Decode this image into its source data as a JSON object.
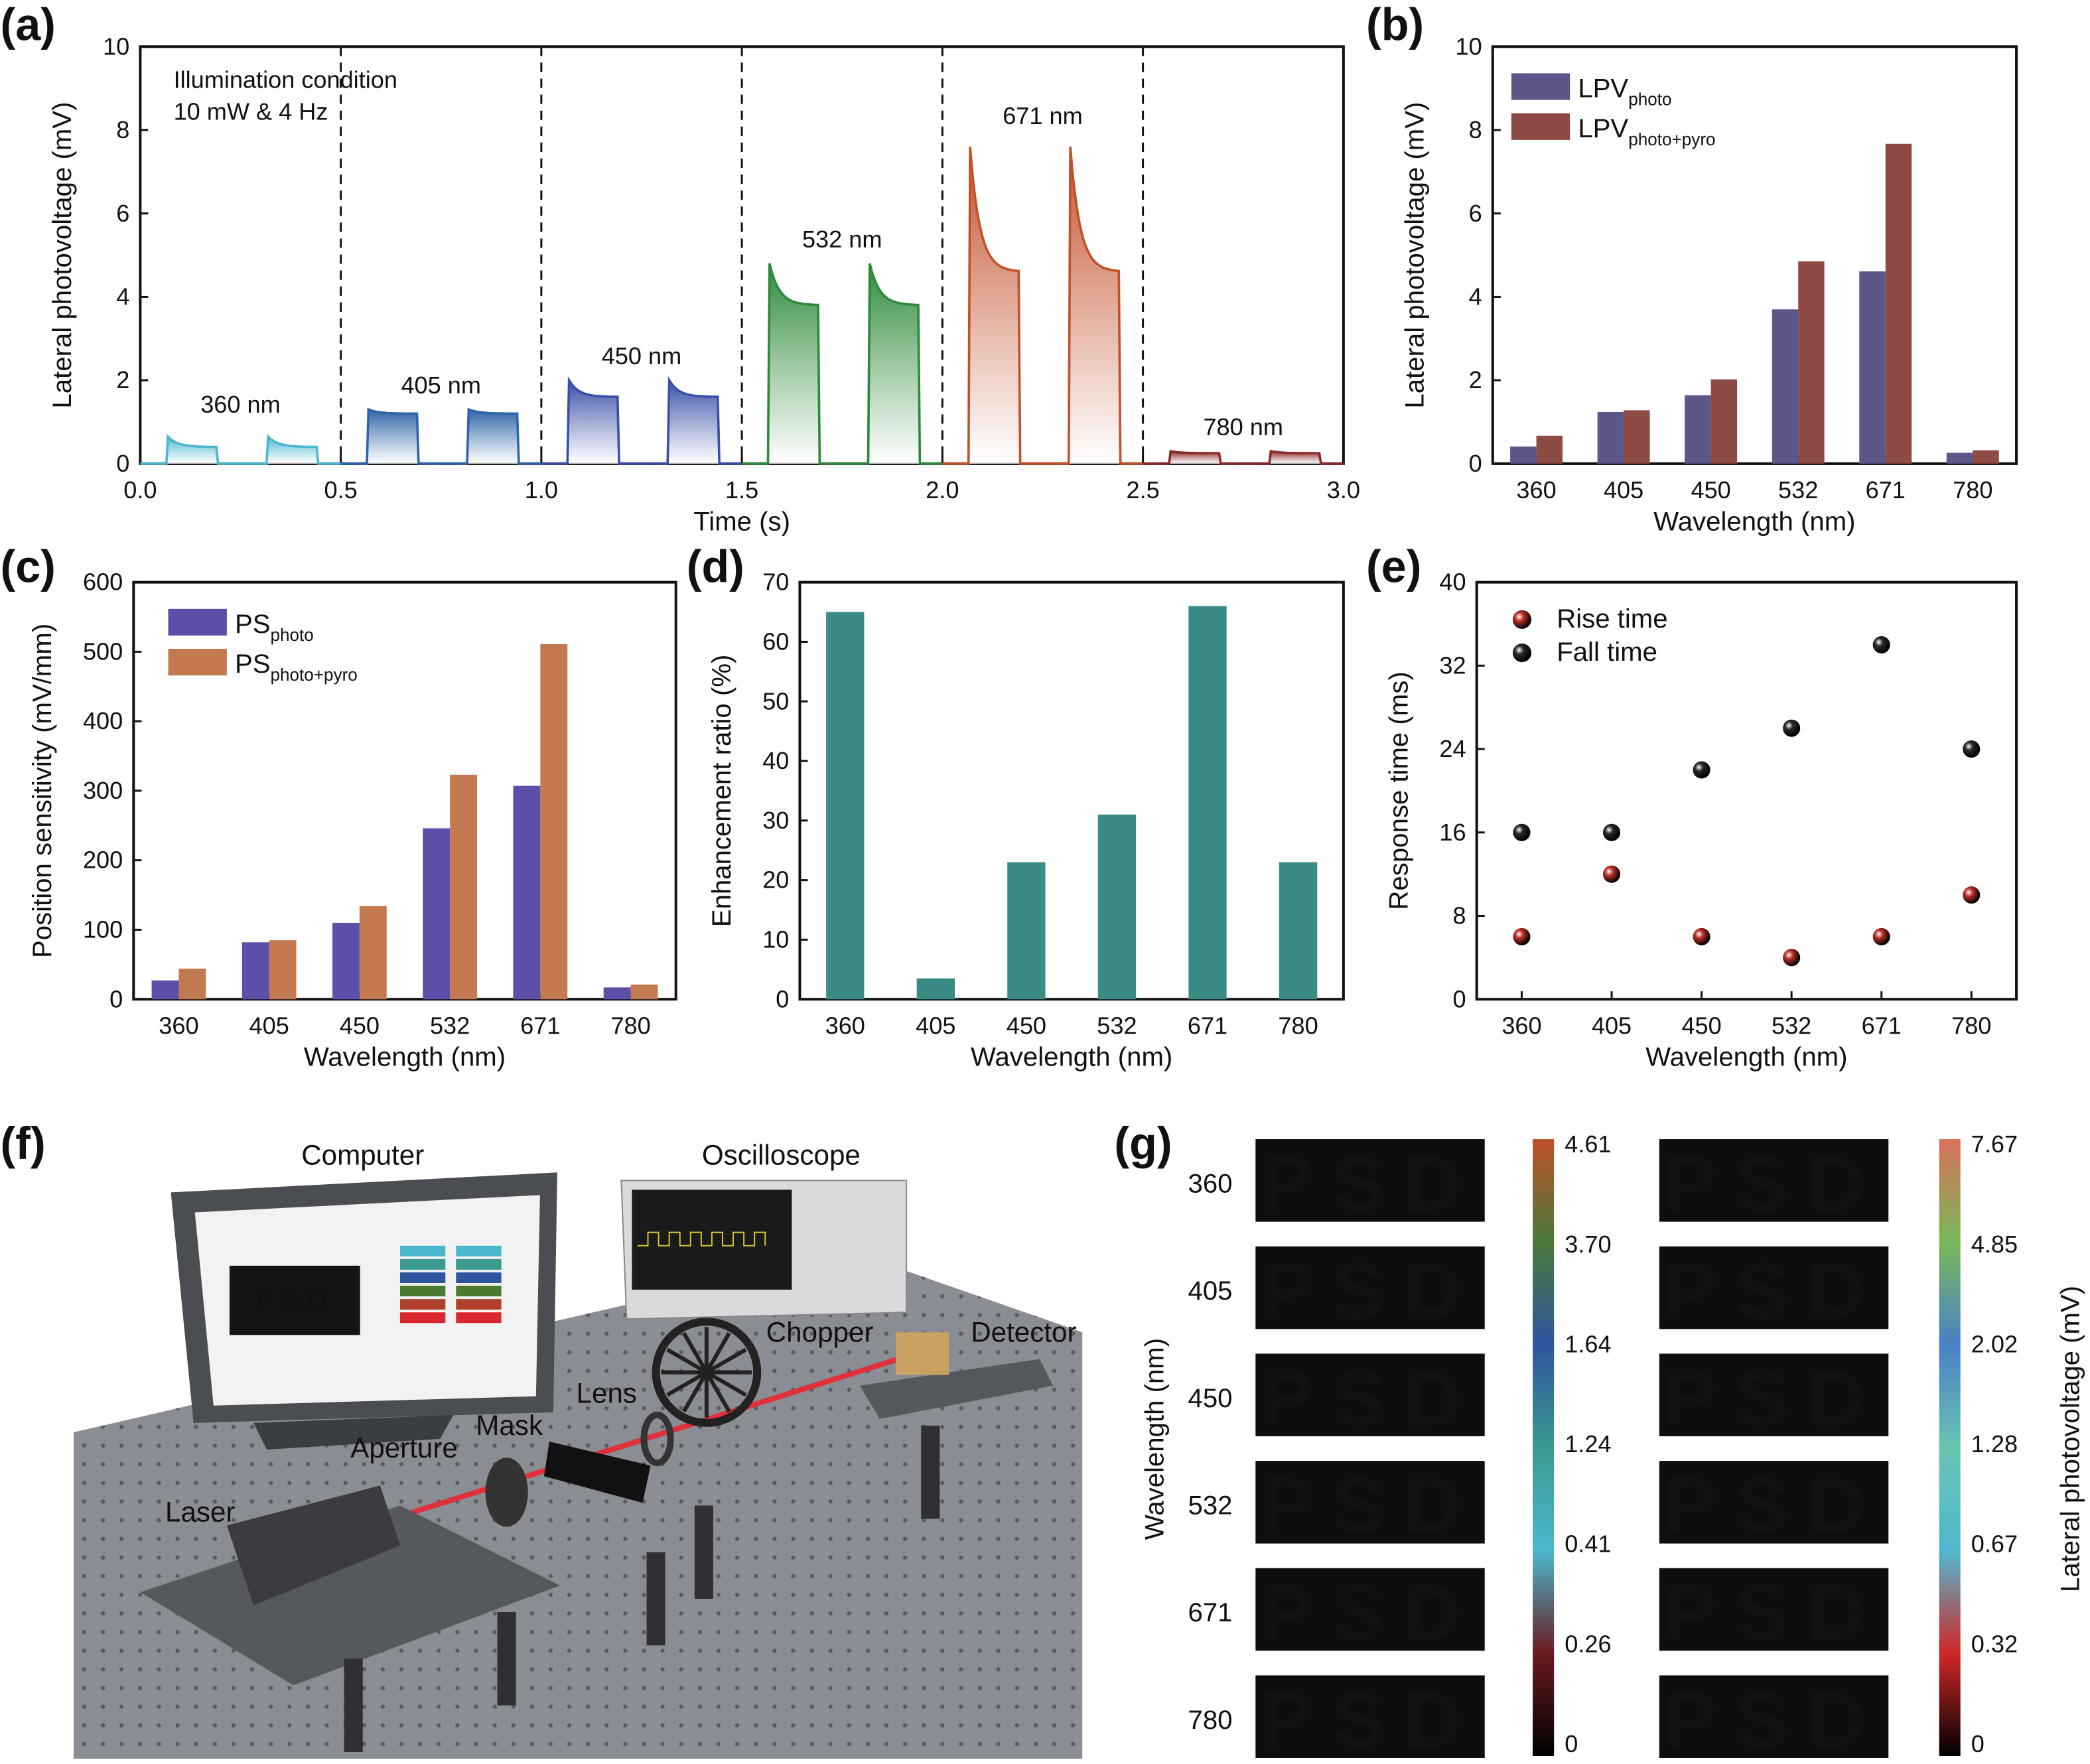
{
  "panel_labels": [
    "(a)",
    "(b)",
    "(c)",
    "(d)",
    "(e)",
    "(f)",
    "(g)"
  ],
  "chart_data": [
    {
      "id": "a",
      "type": "area",
      "xlabel": "Time (s)",
      "ylabel": "Lateral photovoltage (mV)",
      "xlim": [
        0,
        3.0
      ],
      "ylim": [
        0,
        10
      ],
      "xticks": [
        "0.0",
        "0.5",
        "1.0",
        "1.5",
        "2.0",
        "2.5",
        "3.0"
      ],
      "yticks": [
        "0",
        "2",
        "4",
        "6",
        "8",
        "10"
      ],
      "dividers": [
        0.5,
        1.0,
        1.5,
        2.0,
        2.5
      ],
      "annotation": [
        "Illumination condition",
        "10 mW & 4 Hz"
      ],
      "series": [
        {
          "label": "360 nm",
          "color": "#4bb8d0",
          "peak": 0.65,
          "plateau": 0.4
        },
        {
          "label": "405 nm",
          "color": "#2e64a8",
          "peak": 1.3,
          "plateau": 1.2
        },
        {
          "label": "450 nm",
          "color": "#3a4fa8",
          "peak": 2.0,
          "plateau": 1.6
        },
        {
          "label": "532 nm",
          "color": "#2e8a3a",
          "peak": 4.8,
          "plateau": 3.8
        },
        {
          "label": "671 nm",
          "color": "#c2502a",
          "peak": 7.6,
          "plateau": 4.6
        },
        {
          "label": "780 nm",
          "color": "#8a2a2a",
          "peak": 0.3,
          "plateau": 0.25
        }
      ]
    },
    {
      "id": "b",
      "type": "bar",
      "xlabel": "Wavelength (nm)",
      "ylabel": "Lateral photovoltage (mV)",
      "ylim": [
        0,
        10
      ],
      "yticks": [
        "0",
        "2",
        "4",
        "6",
        "8",
        "10"
      ],
      "categories": [
        "360",
        "405",
        "450",
        "532",
        "671",
        "780"
      ],
      "legend": "top-left",
      "series": [
        {
          "name": "LPV",
          "sub": "photo",
          "color": "#5c5689",
          "values": [
            0.41,
            1.24,
            1.64,
            3.7,
            4.61,
            0.26
          ]
        },
        {
          "name": "LPV",
          "sub": "photo+pyro",
          "color": "#8e4b45",
          "values": [
            0.67,
            1.28,
            2.02,
            4.85,
            7.67,
            0.32
          ]
        }
      ]
    },
    {
      "id": "c",
      "type": "bar",
      "xlabel": "Wavelength (nm)",
      "ylabel": "Position sensitivity (mV/mm)",
      "ylim": [
        0,
        600
      ],
      "yticks": [
        "0",
        "100",
        "200",
        "300",
        "400",
        "500",
        "600"
      ],
      "categories": [
        "360",
        "405",
        "450",
        "532",
        "671",
        "780"
      ],
      "legend": "top-left",
      "series": [
        {
          "name": "PS",
          "sub": "photo",
          "color": "#5c4fa8",
          "values": [
            27,
            82,
            110,
            246,
            307,
            17
          ]
        },
        {
          "name": "PS",
          "sub": "photo+pyro",
          "color": "#c47a50",
          "values": [
            44,
            85,
            134,
            323,
            511,
            21
          ]
        }
      ]
    },
    {
      "id": "d",
      "type": "bar",
      "xlabel": "Wavelength (nm)",
      "ylabel": "Enhancement ratio (%)",
      "ylim": [
        0,
        70
      ],
      "yticks": [
        "0",
        "10",
        "20",
        "30",
        "40",
        "50",
        "60",
        "70"
      ],
      "categories": [
        "360",
        "405",
        "450",
        "532",
        "671",
        "780"
      ],
      "series": [
        {
          "color": "#3a8a86",
          "values": [
            65,
            3.5,
            23,
            31,
            66,
            23
          ]
        }
      ]
    },
    {
      "id": "e",
      "type": "scatter",
      "xlabel": "Wavelength (nm)",
      "ylabel": "Response time (ms)",
      "ylim": [
        0,
        40
      ],
      "yticks": [
        "0",
        "8",
        "16",
        "24",
        "32",
        "40"
      ],
      "categories": [
        "360",
        "405",
        "450",
        "532",
        "671",
        "780"
      ],
      "legend": "top-left",
      "series": [
        {
          "name": "Rise time",
          "color": "#c0302a",
          "values": [
            6,
            12,
            6,
            4,
            6,
            10
          ]
        },
        {
          "name": "Fall time",
          "color": "#2a2a2a",
          "values": [
            16,
            16,
            22,
            26,
            34,
            24
          ]
        }
      ]
    }
  ],
  "setup": {
    "labels": {
      "computer": "Computer",
      "oscilloscope": "Oscilloscope",
      "chopper": "Chopper",
      "detector": "Detector",
      "lens": "Lens",
      "mask": "Mask",
      "aperture": "Aperture",
      "laser": "Laser",
      "psd": "PSD",
      "screen_psd": "PSD"
    },
    "beam_color": "#e0303a"
  },
  "psd_map": {
    "ylabel": "Wavelength (nm)",
    "cbar_label": "Lateral photovoltage (mV)",
    "text": "PSD",
    "wavelengths": [
      {
        "label": "360",
        "color": "#4bb0d0"
      },
      {
        "label": "405",
        "color": "#3a9a8c"
      },
      {
        "label": "450",
        "color": "#2e4fa0"
      },
      {
        "label": "532",
        "color": "#4a7a30"
      },
      {
        "label": "671",
        "color": "#b0402a"
      },
      {
        "label": "780",
        "color": "#7a1e22"
      }
    ],
    "left": {
      "letter_colors": [
        "#4bb8d8",
        "#3a9a90",
        "#2e55b0",
        "#3f7a35",
        "#b8442c",
        "#6a1c20"
      ],
      "cbar_ticks": [
        "4.61",
        "3.70",
        "1.64",
        "1.24",
        "0.41",
        "0.26",
        "0"
      ],
      "cbar_colors": [
        "#c0502a",
        "#4a7a3a",
        "#2e55a0",
        "#3a9a90",
        "#4bb8d0",
        "#6a1a20",
        "#000000"
      ]
    },
    "right": {
      "letter_colors": [
        "#58bcd8",
        "#68c4b0",
        "#4a80c8",
        "#70b45a",
        "#d86a55",
        "#d8282e"
      ],
      "cbar_ticks": [
        "7.67",
        "4.85",
        "2.02",
        "1.28",
        "0.67",
        "0.32",
        "0"
      ],
      "cbar_colors": [
        "#d8705a",
        "#78b858",
        "#4a80c8",
        "#68c4b0",
        "#50b8d0",
        "#d02828",
        "#000000"
      ]
    }
  }
}
